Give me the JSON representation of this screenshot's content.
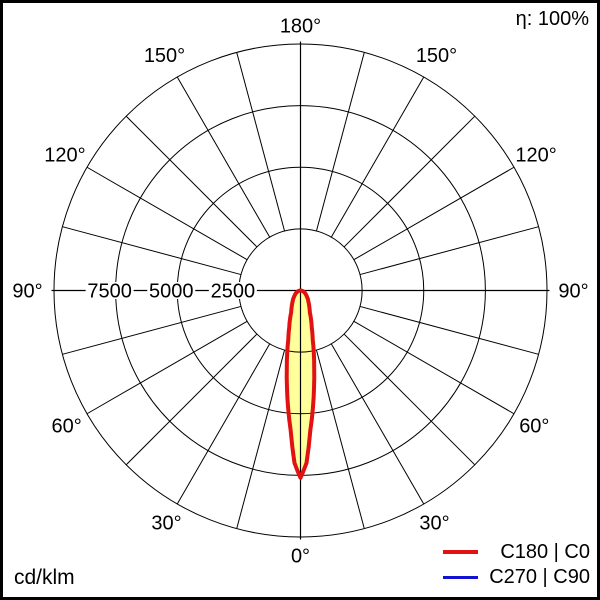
{
  "meta": {
    "efficiency_label": "η: 100%",
    "unit_label": "cd/klm"
  },
  "chart_data": {
    "type": "polar",
    "description": "Luminous intensity distribution curve, narrow downward beam, values in cd/klm",
    "unit": "cd/klm",
    "efficiency": "η: 100%",
    "max_value": 10000,
    "ring_values": [
      2500,
      5000,
      7500,
      10000
    ],
    "ring_tick_labels": [
      {
        "text": "2500",
        "value": 2500
      },
      {
        "text": "5000",
        "value": 5000
      },
      {
        "text": "7500",
        "value": 7500
      }
    ],
    "radial_grid_step_deg": 15,
    "grid_color": "#000000",
    "angle_labels": [
      {
        "text": "0°",
        "gamma": 0,
        "radius": 265,
        "sides": [
          "center"
        ]
      },
      {
        "text": "30°",
        "gamma": 30,
        "radius": 268,
        "sides": [
          "left",
          "right"
        ]
      },
      {
        "text": "60°",
        "gamma": 60,
        "radius": 270,
        "sides": [
          "left",
          "right"
        ]
      },
      {
        "text": "90°",
        "gamma": 90,
        "radius": 273,
        "sides": [
          "left",
          "right"
        ]
      },
      {
        "text": "120°",
        "gamma": 120,
        "radius": 272,
        "sides": [
          "left",
          "right"
        ]
      },
      {
        "text": "150°",
        "gamma": 150,
        "radius": 272,
        "sides": [
          "left",
          "right"
        ]
      },
      {
        "text": "180°",
        "gamma": 180,
        "radius": 265,
        "sides": [
          "center"
        ]
      }
    ],
    "series": [
      {
        "name": "C180 | C0",
        "color": "#e11211",
        "fill": "#ffff9c",
        "stroke_width": 4,
        "symmetric": true,
        "points_gamma_deg_vs_cd_per_klm": [
          [
            0,
            7600
          ],
          [
            2,
            7000
          ],
          [
            4,
            5700
          ],
          [
            6,
            4800
          ],
          [
            8,
            3950
          ],
          [
            10,
            3200
          ],
          [
            12,
            2600
          ],
          [
            14,
            2050
          ],
          [
            17,
            1560
          ],
          [
            20,
            1250
          ],
          [
            23,
            970
          ],
          [
            27,
            800
          ],
          [
            30,
            700
          ],
          [
            35,
            560
          ],
          [
            40,
            470
          ],
          [
            46,
            360
          ],
          [
            52,
            290
          ],
          [
            60,
            210
          ],
          [
            70,
            130
          ],
          [
            80,
            60
          ],
          [
            90,
            0
          ]
        ]
      },
      {
        "name": "C270 | C90",
        "color": "#1412d2",
        "fill": null,
        "stroke_width": 3,
        "symmetric": true,
        "points_gamma_deg_vs_cd_per_klm": [
          [
            0,
            7600
          ],
          [
            2,
            7000
          ],
          [
            4,
            5700
          ],
          [
            6,
            4800
          ],
          [
            8,
            3950
          ],
          [
            10,
            3200
          ],
          [
            12,
            2600
          ],
          [
            14,
            2050
          ],
          [
            17,
            1560
          ],
          [
            20,
            1250
          ],
          [
            23,
            970
          ],
          [
            27,
            800
          ],
          [
            30,
            700
          ],
          [
            35,
            560
          ],
          [
            40,
            470
          ],
          [
            46,
            360
          ],
          [
            52,
            290
          ],
          [
            60,
            210
          ],
          [
            70,
            130
          ],
          [
            80,
            60
          ],
          [
            90,
            0
          ]
        ]
      }
    ],
    "legend_position": "bottom-right"
  }
}
